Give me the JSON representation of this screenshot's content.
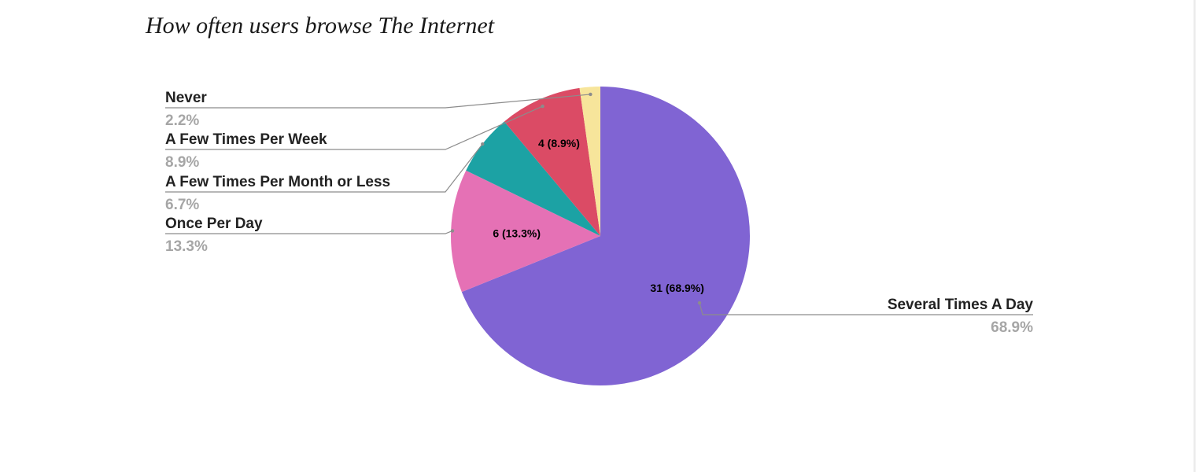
{
  "chart_data": {
    "type": "pie",
    "title": "How often users browse The Internet",
    "slices": [
      {
        "name": "Several Times A Day",
        "count": 31,
        "percent_label": "68.9%",
        "inner_label": "31 (68.9%)",
        "color": "#8064d3"
      },
      {
        "name": "Once Per Day",
        "count": 6,
        "percent_label": "13.3%",
        "inner_label": "6 (13.3%)",
        "color": "#e571b5"
      },
      {
        "name": "A Few Times Per Month or Less",
        "count": 3,
        "percent_label": "6.7%",
        "inner_label": "",
        "color": "#1ca2a4"
      },
      {
        "name": "A Few Times Per Week",
        "count": 4,
        "percent_label": "8.9%",
        "inner_label": "4 (8.9%)",
        "color": "#db4b65"
      },
      {
        "name": "Never",
        "count": 1,
        "percent_label": "2.2%",
        "inner_label": "",
        "color": "#f7e59b"
      }
    ]
  }
}
